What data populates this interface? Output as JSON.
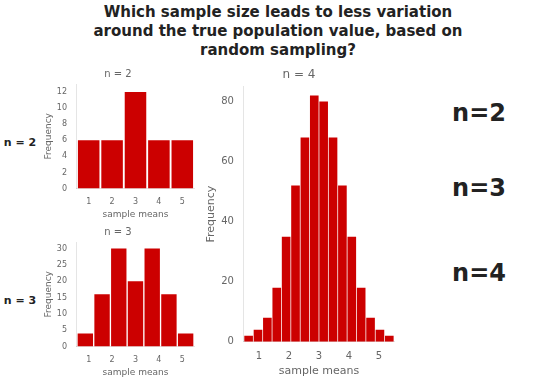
{
  "title": [
    "Which sample size leads to less variation",
    "around the true population value, based on",
    "random sampling?"
  ],
  "annotations": [
    "n=2",
    "n=3",
    "n=4"
  ],
  "chart_data": [
    {
      "type": "bar",
      "title": "n = 2",
      "x_label": "sample means",
      "y_label": "Frequency",
      "categories": [
        null,
        null,
        null,
        null,
        null
      ],
      "values": [
        6,
        6,
        12,
        6,
        6
      ],
      "color": "#cc0000",
      "xlim": [
        1,
        5
      ],
      "xticks": [
        1,
        2,
        3,
        4,
        5
      ],
      "ylim": [
        0,
        13
      ],
      "yticks": [
        0,
        2,
        4,
        6,
        8,
        10,
        12
      ],
      "grid": false,
      "annotations": [
        "n = 2"
      ]
    },
    {
      "type": "bar",
      "title": "n = 3",
      "x_label": "sample means",
      "y_label": "Frequency",
      "categories": [
        null,
        null,
        null,
        null,
        null,
        null,
        null
      ],
      "values": [
        4,
        16,
        30,
        20,
        30,
        16,
        4
      ],
      "color": "#cc0000",
      "xlim": [
        1,
        5
      ],
      "xticks": [
        1,
        2,
        3,
        4,
        5
      ],
      "ylim": [
        0,
        32
      ],
      "yticks": [
        0,
        5,
        10,
        15,
        20,
        25,
        30
      ],
      "grid": false,
      "annotations": [
        "n = 3"
      ]
    },
    {
      "type": "bar",
      "title": "n = 4",
      "x_label": "sample means",
      "y_label": "Frequency",
      "categories": [
        null,
        null,
        null,
        null,
        null,
        null,
        null,
        null,
        null,
        null,
        null,
        null,
        null,
        null,
        null,
        null
      ],
      "values": [
        2,
        4,
        8,
        18,
        35,
        52,
        68,
        82,
        80,
        68,
        52,
        35,
        18,
        8,
        4,
        2
      ],
      "color": "#cc0000",
      "xlim": [
        1,
        5
      ],
      "xticks": [
        1,
        2,
        3,
        4,
        5
      ],
      "ylim": [
        0,
        85
      ],
      "yticks": [
        0,
        20,
        40,
        60,
        80
      ],
      "grid": false
    }
  ]
}
